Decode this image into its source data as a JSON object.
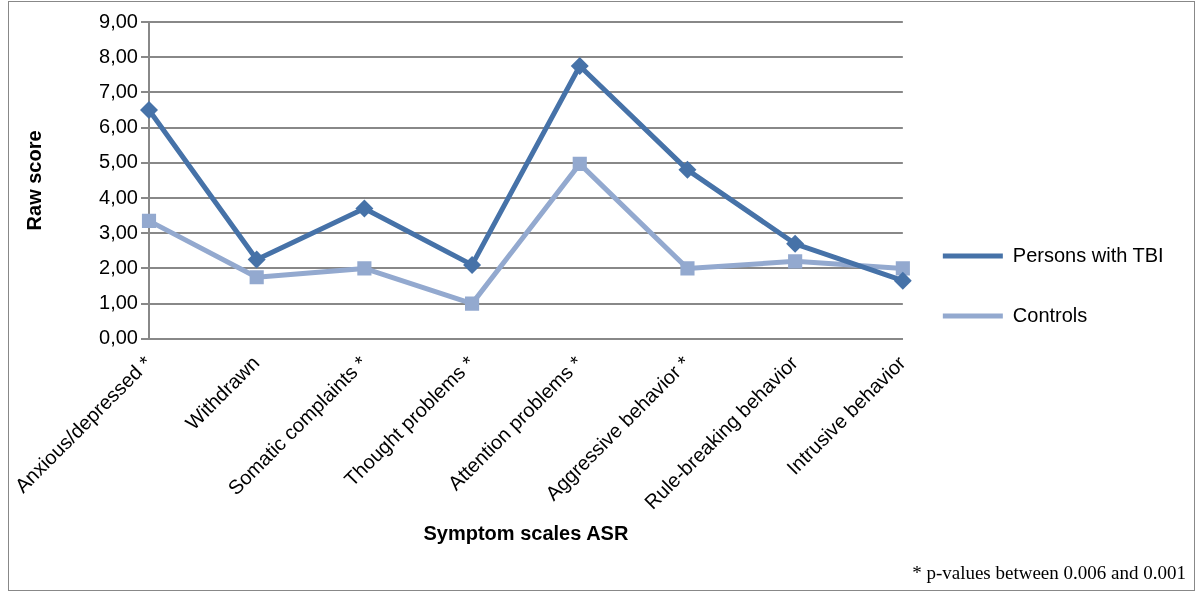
{
  "chart_data": {
    "type": "line",
    "xlabel": "Symptom scales ASR",
    "ylabel": "Raw score",
    "categories": [
      "Anxious/depressed *",
      "Withdrawn",
      "Somatic complaints *",
      "Thought problems *",
      "Attention problems *",
      "Aggressive behavior *",
      "Rule-breaking behavior",
      "Intrusive behavior"
    ],
    "series": [
      {
        "name": "Persons with TBI",
        "color": "#4672a8",
        "values": [
          6.5,
          2.25,
          3.7,
          2.1,
          7.75,
          4.8,
          2.7,
          1.65
        ],
        "marker": "diamond"
      },
      {
        "name": "Controls",
        "color": "#93a9cf",
        "values": [
          3.35,
          1.75,
          2.0,
          1.0,
          4.97,
          2.0,
          2.2,
          2.0
        ],
        "marker": "square"
      }
    ],
    "ylim": [
      0,
      9
    ],
    "yticks": [
      {
        "value": 0,
        "label": "0,00"
      },
      {
        "value": 1,
        "label": "1,00"
      },
      {
        "value": 2,
        "label": "2,00"
      },
      {
        "value": 3,
        "label": "3,00"
      },
      {
        "value": 4,
        "label": "4,00"
      },
      {
        "value": 5,
        "label": "5,00"
      },
      {
        "value": 6,
        "label": "6,00"
      },
      {
        "value": 7,
        "label": "7,00"
      },
      {
        "value": 8,
        "label": "8,00"
      },
      {
        "value": 9,
        "label": "9,00"
      }
    ],
    "grid": "y",
    "legend": "right",
    "line_style": "solid",
    "annotations": [
      "* p-values between 0.006 and 0.001"
    ]
  }
}
